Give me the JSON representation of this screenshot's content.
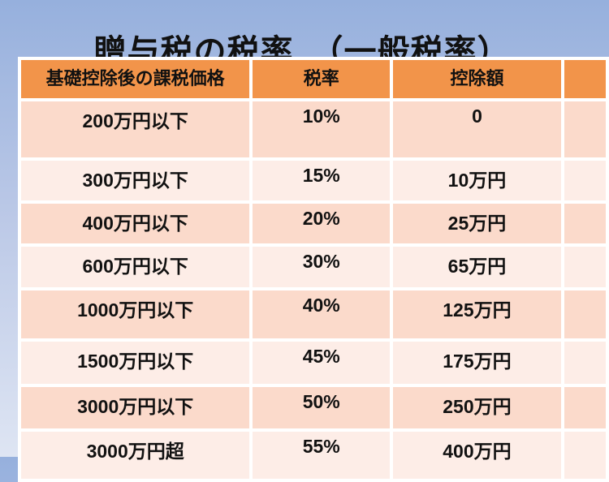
{
  "title": "贈与税の税率　（一般税率）",
  "table": {
    "headers": [
      "基礎控除後の課税価格",
      "税率",
      "控除額"
    ],
    "rows": [
      {
        "price": "200万円以下",
        "rate": "10%",
        "deduction": "0"
      },
      {
        "price": "300万円以下",
        "rate": "15%",
        "deduction": "10万円"
      },
      {
        "price": "400万円以下",
        "rate": "20%",
        "deduction": "25万円"
      },
      {
        "price": "600万円以下",
        "rate": "30%",
        "deduction": "65万円"
      },
      {
        "price": "1000万円以下",
        "rate": "40%",
        "deduction": "125万円"
      },
      {
        "price": "1500万円以下",
        "rate": "45%",
        "deduction": "175万円"
      },
      {
        "price": "3000万円以下",
        "rate": "50%",
        "deduction": "250万円"
      },
      {
        "price": "3000万円超",
        "rate": "55%",
        "deduction": "400万円"
      }
    ]
  },
  "colors": {
    "header_bg": "#F2944A",
    "row_odd_bg": "#FBDACB",
    "row_even_bg": "#FDEDE7",
    "background_top": "#96B0DD",
    "background_bottom": "#DEE5F3",
    "cell_border": "#FFFFFF",
    "text": "#111111"
  }
}
